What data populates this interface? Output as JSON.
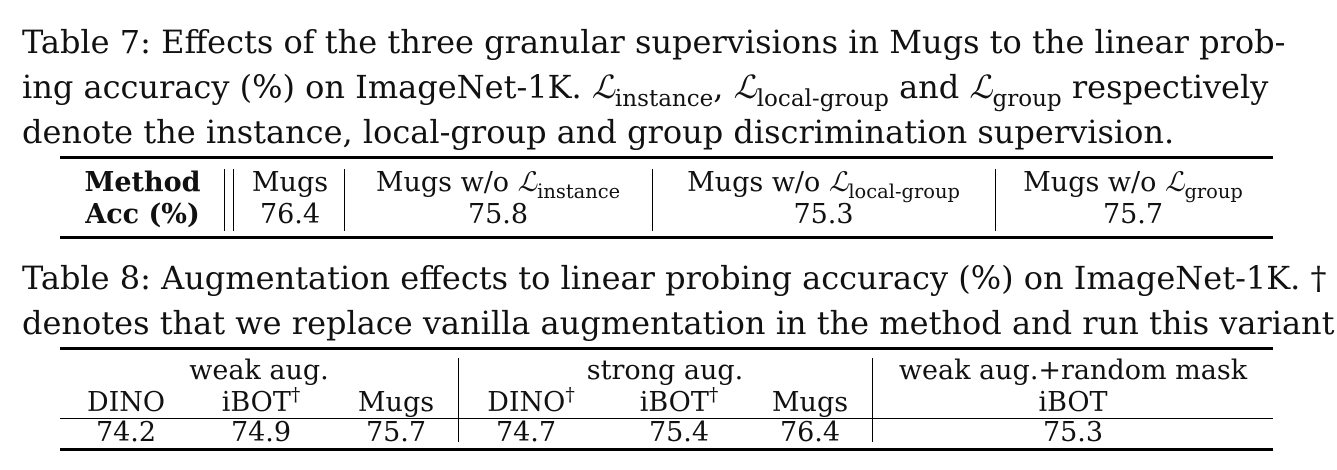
{
  "table7": {
    "caption_line1": "Table 7: Effects of the three granular supervisions in Mugs to the linear prob-",
    "caption_line2_prefix": "ing accuracy (%) on ImageNet-1K.",
    "caption_line2_sep1": ",",
    "caption_line2_and": "and",
    "caption_line2_suffix": "respectively",
    "caption_line3": "denote the instance, local-group and group discrimination supervision.",
    "loss_symbol": "ℒ",
    "loss_instance": "instance",
    "loss_local_group": "local-group",
    "loss_group": "group",
    "row_header_method": "Method",
    "row_header_acc": "Acc (%)",
    "columns": [
      {
        "method": "Mugs",
        "acc": "76.4"
      },
      {
        "method_prefix": "Mugs w/o",
        "sub": "instance",
        "acc": "75.8"
      },
      {
        "method_prefix": "Mugs w/o",
        "sub": "local-group",
        "acc": "75.3"
      },
      {
        "method_prefix": "Mugs w/o",
        "sub": "group",
        "acc": "75.7"
      }
    ]
  },
  "table8": {
    "caption_line1": "Table 8: Augmentation effects to linear probing accuracy (%) on ImageNet-1K. †",
    "caption_line2": "denotes that we replace vanilla augmentation in the method and run this variant.",
    "groups": [
      "weak aug.",
      "strong aug.",
      "weak aug.+random mask"
    ],
    "methods": [
      "DINO",
      "iBOT",
      "Mugs",
      "DINO",
      "iBOT",
      "Mugs",
      "iBOT"
    ],
    "dagger": "†",
    "values": [
      "74.2",
      "74.9",
      "75.7",
      "74.7",
      "75.4",
      "76.4",
      "75.3"
    ]
  }
}
